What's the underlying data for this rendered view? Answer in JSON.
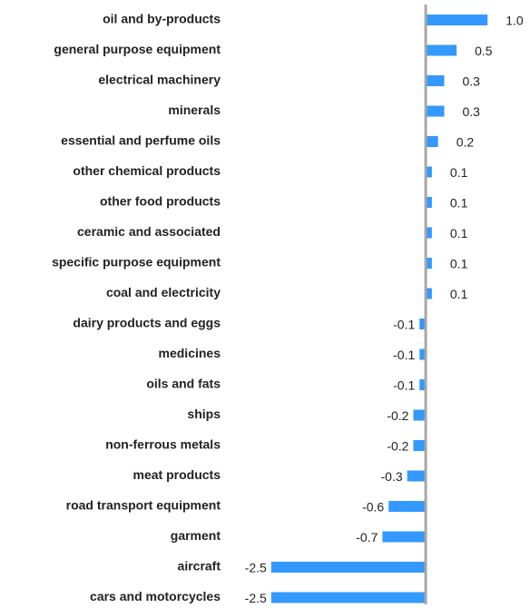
{
  "chart_data": {
    "type": "bar",
    "orientation": "horizontal",
    "categories": [
      "oil and by-products",
      "general purpose equipment",
      "electrical machinery",
      "minerals",
      "essential and perfume oils",
      "other chemical products",
      "other food products",
      "ceramic and associated",
      "specific purpose equipment",
      "coal and electricity",
      "dairy products and eggs",
      "medicines",
      "oils and fats",
      "ships",
      "non-ferrous metals",
      "meat products",
      "road transport equipment",
      "garment",
      "aircraft",
      "cars and motorcycles"
    ],
    "values": [
      1.0,
      0.5,
      0.3,
      0.3,
      0.2,
      0.1,
      0.1,
      0.1,
      0.1,
      0.1,
      -0.1,
      -0.1,
      -0.1,
      -0.2,
      -0.2,
      -0.3,
      -0.6,
      -0.7,
      -2.5,
      -2.5
    ],
    "value_labels": [
      "1.0",
      "0.5",
      "0.3",
      "0.3",
      "0.2",
      "0.1",
      "0.1",
      "0.1",
      "0.1",
      "0.1",
      "-0.1",
      "-0.1",
      "-0.1",
      "-0.2",
      "-0.2",
      "-0.3",
      "-0.6",
      "-0.7",
      "-2.5",
      "-2.5"
    ],
    "color": "#3399ff",
    "xlim": [
      -2.6,
      1.1
    ]
  }
}
